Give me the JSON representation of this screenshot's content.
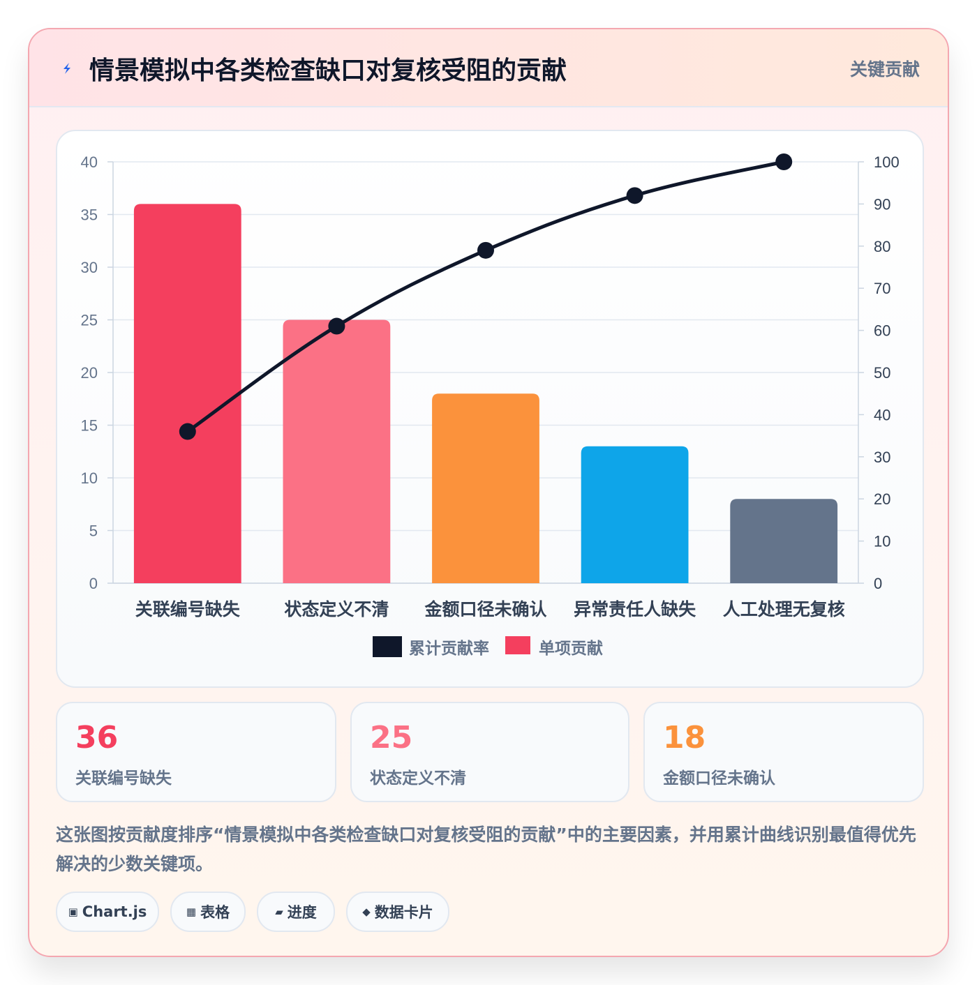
{
  "header": {
    "title": "情景模拟中各类检查缺口对复核受阻的贡献",
    "tag": "关键贡献"
  },
  "colors": {
    "bars": [
      "#f43f5e",
      "#fb7185",
      "#fb923c",
      "#0ea5e9",
      "#64748b"
    ],
    "line": "#0f172a"
  },
  "chart_data": {
    "type": "bar",
    "categories": [
      "关联编号缺失",
      "状态定义不清",
      "金额口径未确认",
      "异常责任人缺失",
      "人工处理无复核"
    ],
    "series": [
      {
        "name": "累计贡献率",
        "type": "line",
        "axis": "right",
        "values": [
          36,
          61,
          79,
          92,
          100
        ]
      },
      {
        "name": "单项贡献",
        "type": "bar",
        "axis": "left",
        "values": [
          36,
          25,
          18,
          13,
          8
        ]
      }
    ],
    "ylim": [
      0,
      40
    ],
    "y_ticks": [
      0,
      5,
      10,
      15,
      20,
      25,
      30,
      35,
      40
    ],
    "y2lim": [
      0,
      100
    ],
    "y2_ticks": [
      0,
      10,
      20,
      30,
      40,
      50,
      60,
      70,
      80,
      90,
      100
    ],
    "grid": true,
    "legend_position": "bottom"
  },
  "stats": [
    {
      "value": "36",
      "label": "关联编号缺失",
      "color": "#f43f5e"
    },
    {
      "value": "25",
      "label": "状态定义不清",
      "color": "#fb7185"
    },
    {
      "value": "18",
      "label": "金额口径未确认",
      "color": "#fb923c"
    }
  ],
  "description": "这张图按贡献度排序“情景模拟中各类检查缺口对复核受阻的贡献”中的主要因素，并用累计曲线识别最值得优先解决的少数关键项。",
  "chips": [
    {
      "icon": "▣",
      "label": "Chart.js"
    },
    {
      "icon": "▦",
      "label": "表格"
    },
    {
      "icon": "▰",
      "label": "进度"
    },
    {
      "icon": "◆",
      "label": "数据卡片"
    }
  ]
}
